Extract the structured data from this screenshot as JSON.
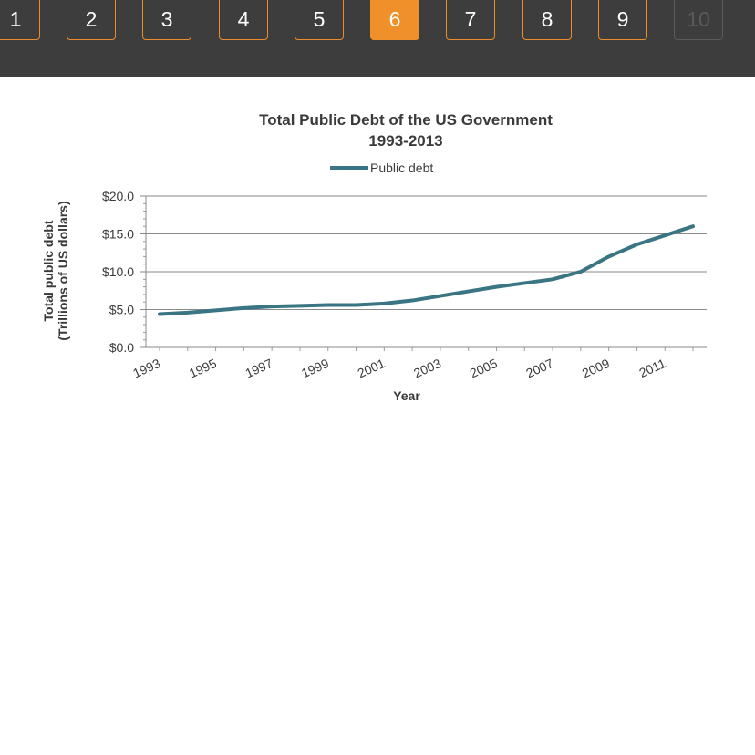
{
  "pagination": {
    "pages": [
      {
        "label": "1",
        "state": "normal"
      },
      {
        "label": "2",
        "state": "normal"
      },
      {
        "label": "3",
        "state": "normal"
      },
      {
        "label": "4",
        "state": "normal"
      },
      {
        "label": "5",
        "state": "normal"
      },
      {
        "label": "6",
        "state": "active"
      },
      {
        "label": "7",
        "state": "normal"
      },
      {
        "label": "8",
        "state": "normal"
      },
      {
        "label": "9",
        "state": "normal"
      },
      {
        "label": "10",
        "state": "disabled"
      }
    ],
    "colors": {
      "bar": "#3d3d3d",
      "accent": "#f0902a",
      "disabled": "#5a5a5a"
    }
  },
  "chart_data": {
    "type": "line",
    "title_line1": "Total Public Debt of the US Government",
    "title_line2": "1993-2013",
    "xlabel": "Year",
    "ylabel_line1": "Total public debt",
    "ylabel_line2": "(Trillions of US dollars)",
    "legend": {
      "position": "top",
      "label": "Public debt"
    },
    "x": [
      1993,
      1994,
      1995,
      1996,
      1997,
      1998,
      1999,
      2000,
      2001,
      2002,
      2003,
      2004,
      2005,
      2006,
      2007,
      2008,
      2009,
      2010,
      2011,
      2012
    ],
    "x_ticks": [
      "1993",
      "1995",
      "1997",
      "1999",
      "2001",
      "2003",
      "2005",
      "2007",
      "2009",
      "2011"
    ],
    "series": [
      {
        "name": "Public debt",
        "color": "#3a7584",
        "values": [
          4.4,
          4.6,
          4.9,
          5.2,
          5.4,
          5.5,
          5.6,
          5.6,
          5.8,
          6.2,
          6.8,
          7.4,
          8.0,
          8.5,
          9.0,
          10.0,
          12.0,
          13.6,
          14.8,
          16.0
        ]
      }
    ],
    "y_ticks": [
      "$0.0",
      "$5.0",
      "$10.0",
      "$15.0",
      "$20.0"
    ],
    "y_tick_values": [
      0,
      5,
      10,
      15,
      20
    ],
    "ylim": [
      0,
      20
    ],
    "grid": true
  }
}
